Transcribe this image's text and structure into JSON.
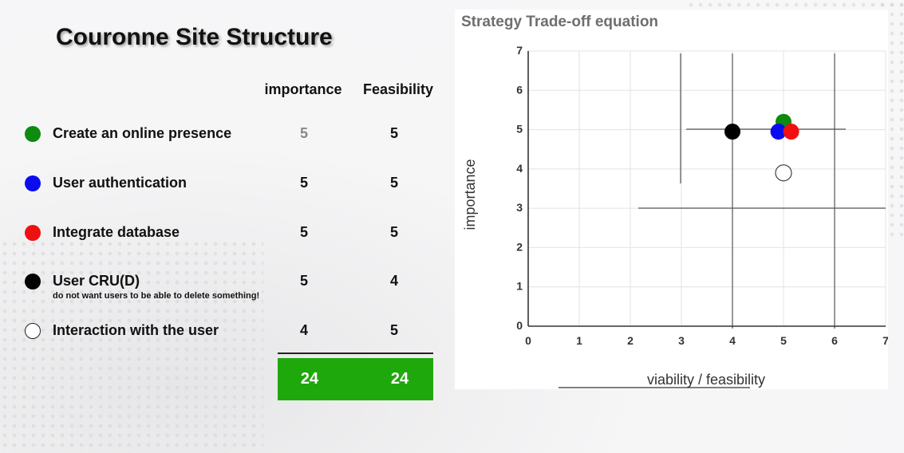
{
  "slide": {
    "title": "Couronne Site Structure",
    "columns": {
      "importance": "importance",
      "feasibility": "Feasibility"
    },
    "rows": [
      {
        "label": "Create an online presence",
        "note": "",
        "importance": "5",
        "feasibility": "5",
        "dot_color": "#0e8a0e",
        "importance_color": "#888888"
      },
      {
        "label": "User authentication",
        "note": "",
        "importance": "5",
        "feasibility": "5",
        "dot_color": "#0b0bf0",
        "importance_color": "#111111"
      },
      {
        "label": "Integrate database",
        "note": "",
        "importance": "5",
        "feasibility": "5",
        "dot_color": "#f01010",
        "importance_color": "#111111"
      },
      {
        "label": "User CRU(D)",
        "note": "do not want users to be able to delete something!",
        "importance": "5",
        "feasibility": "4",
        "dot_color": "#000000",
        "importance_color": "#111111"
      },
      {
        "label": "Interaction with the user",
        "note": "",
        "importance": "4",
        "feasibility": "5",
        "dot_color": "#ffffff",
        "importance_color": "#111111"
      }
    ],
    "totals": {
      "importance": "24",
      "feasibility": "24"
    },
    "total_color": "#1fa80c"
  },
  "chart_data": {
    "type": "scatter",
    "title": "Strategy Trade-off equation",
    "xlabel": "viability / feasibility",
    "ylabel": "importance",
    "xlim": [
      0,
      7
    ],
    "ylim": [
      0,
      7
    ],
    "xticks": [
      "0",
      "1",
      "2",
      "3",
      "4",
      "5",
      "6",
      "7"
    ],
    "yticks": [
      "0",
      "1",
      "2",
      "3",
      "4",
      "5",
      "6",
      "7"
    ],
    "grid": true,
    "legend": "none",
    "points": [
      {
        "x": 5.0,
        "y": 5.2,
        "color": "#0e8a0e"
      },
      {
        "x": 4.9,
        "y": 4.95,
        "color": "#0b0bf0"
      },
      {
        "x": 5.15,
        "y": 4.95,
        "color": "#f01010"
      },
      {
        "x": 4.0,
        "y": 4.95,
        "color": "#000000"
      },
      {
        "x": 5.0,
        "y": 3.9,
        "color": "#ffffff"
      }
    ]
  }
}
